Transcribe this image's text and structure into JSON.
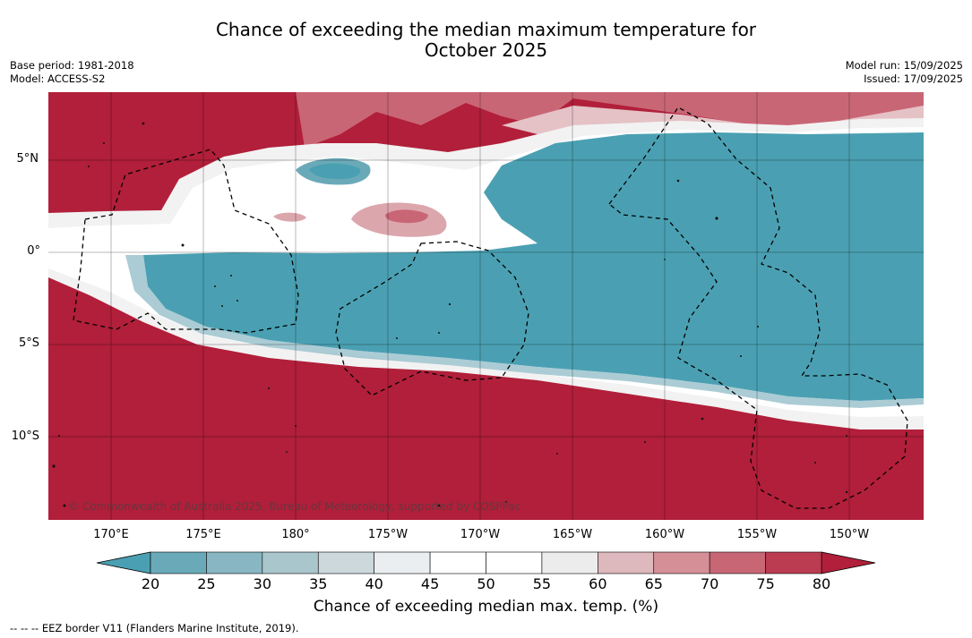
{
  "title_line1": "Chance of exceeding the median maximum temperature for",
  "title_line2": "October 2025",
  "meta": {
    "base_period": "Base period: 1981-2018",
    "model": "Model: ACCESS-S2",
    "model_run": "Model run: 15/09/2025",
    "issued": "Issued: 17/09/2025"
  },
  "lat_labels": [
    "5°N",
    "0°",
    "5°S",
    "10°S"
  ],
  "lon_labels": [
    "170°E",
    "175°E",
    "180°",
    "175°W",
    "170°W",
    "165°W",
    "160°W",
    "155°W",
    "150°W"
  ],
  "copyright": "© Commonwealth of Australia 2025, Bureau of Meteorology, supported by COSPPac",
  "colorbar": {
    "ticks": [
      "20",
      "25",
      "30",
      "35",
      "40",
      "45",
      "50",
      "55",
      "60",
      "65",
      "70",
      "75",
      "80"
    ],
    "colors": [
      "#4aa0b2",
      "#6aaab8",
      "#88b7c3",
      "#aac6cd",
      "#ccd8dc",
      "#eaeef0",
      "#ffffff",
      "#ffffff",
      "#ececec",
      "#ddb8bd",
      "#d48f97",
      "#c96675",
      "#bb3b51",
      "#b11f3a"
    ],
    "label": "Chance of exceeding median max. temp. (%)"
  },
  "footnote": "--  --  -- EEZ border V11 (Flanders Marine Institute, 2019).",
  "colors": {
    "warm": "#b11f3a",
    "cool": "#4aa0b2",
    "neutral": "#ffffff"
  }
}
